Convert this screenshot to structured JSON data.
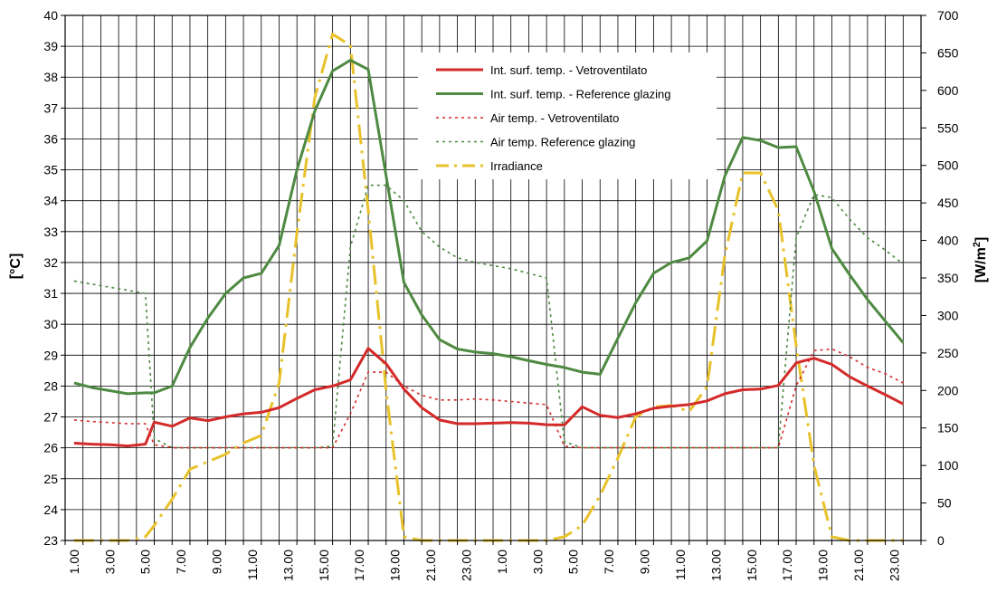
{
  "chart_data": {
    "type": "line",
    "title": "",
    "ylabel_left": "[°C]",
    "ylabel_right_base": "[W/m",
    "ylabel_right_sup": "2",
    "ylabel_right_close": "]",
    "ylim_left": [
      23,
      40
    ],
    "ylim_right": [
      0,
      700
    ],
    "yticks_left": [
      23,
      24,
      25,
      26,
      27,
      28,
      29,
      30,
      31,
      32,
      33,
      34,
      35,
      36,
      37,
      38,
      39,
      40
    ],
    "yticks_right": [
      0,
      50,
      100,
      150,
      200,
      250,
      300,
      350,
      400,
      450,
      500,
      550,
      600,
      650,
      700
    ],
    "x_hours": [
      1,
      2,
      3,
      4,
      5,
      6,
      7,
      8,
      9,
      10,
      11,
      12,
      13,
      14,
      15,
      16,
      17,
      18,
      19,
      20,
      21,
      22,
      23,
      24,
      25,
      26,
      27,
      28,
      29,
      30,
      31,
      32,
      33,
      34,
      35,
      36,
      37,
      38,
      39,
      40,
      41,
      42,
      43,
      44,
      45,
      46,
      47,
      48
    ],
    "xtick_labels": [
      "1.00",
      "3.00",
      "5.00",
      "7.00",
      "9.00",
      "11.00",
      "13.00",
      "15.00",
      "17.00",
      "19.00",
      "21.00",
      "23.00",
      "1.00",
      "3.00",
      "5.00",
      "7.00",
      "9.00",
      "11.00",
      "13.00",
      "15.00",
      "17.00",
      "19.00",
      "21.00",
      "23.00"
    ],
    "grid": true,
    "legend_position": "top-center",
    "series": [
      {
        "name": "Int. surf. temp. - Vetroventilato",
        "axis": "left",
        "color": "#d42a2a",
        "style": "solid",
        "values": [
          [
            1,
            26.15
          ],
          [
            2,
            26.12
          ],
          [
            3,
            26.1
          ],
          [
            4,
            26.06
          ],
          [
            5,
            26.12
          ],
          [
            5.5,
            26.83
          ],
          [
            6.5,
            26.7
          ],
          [
            7.5,
            26.97
          ],
          [
            8.5,
            26.88
          ],
          [
            9.5,
            27.0
          ],
          [
            10.5,
            27.1
          ],
          [
            11.5,
            27.15
          ],
          [
            12.5,
            27.3
          ],
          [
            13.5,
            27.6
          ],
          [
            14.5,
            27.88
          ],
          [
            15.5,
            28.0
          ],
          [
            16.5,
            28.2
          ],
          [
            17.5,
            29.22
          ],
          [
            18.5,
            28.72
          ],
          [
            19.5,
            27.9
          ],
          [
            20.5,
            27.3
          ],
          [
            21.5,
            26.9
          ],
          [
            22.5,
            26.78
          ],
          [
            23.5,
            26.78
          ],
          [
            24.5,
            26.8
          ],
          [
            25.5,
            26.82
          ],
          [
            26.5,
            26.8
          ],
          [
            27.5,
            26.75
          ],
          [
            28.5,
            26.74
          ],
          [
            29.5,
            27.33
          ],
          [
            30.5,
            27.05
          ],
          [
            31.5,
            26.98
          ],
          [
            32.5,
            27.1
          ],
          [
            33.5,
            27.28
          ],
          [
            34.5,
            27.35
          ],
          [
            35.5,
            27.4
          ],
          [
            36.5,
            27.52
          ],
          [
            37.5,
            27.75
          ],
          [
            38.5,
            27.88
          ],
          [
            39.5,
            27.9
          ],
          [
            40.5,
            28.02
          ],
          [
            41.5,
            28.75
          ],
          [
            42.5,
            28.9
          ],
          [
            43.5,
            28.7
          ],
          [
            44.5,
            28.3
          ],
          [
            45.5,
            28.0
          ],
          [
            46.5,
            27.72
          ],
          [
            47.5,
            27.42
          ]
        ]
      },
      {
        "name": "Int. surf. temp. - Reference glazing",
        "axis": "left",
        "color": "#4e8a42",
        "style": "solid",
        "values": [
          [
            1,
            28.1
          ],
          [
            2,
            27.95
          ],
          [
            3,
            27.85
          ],
          [
            4,
            27.75
          ],
          [
            5,
            27.78
          ],
          [
            5.5,
            27.78
          ],
          [
            6.5,
            28.0
          ],
          [
            7.5,
            29.25
          ],
          [
            8.5,
            30.2
          ],
          [
            9.5,
            31.0
          ],
          [
            10.5,
            31.5
          ],
          [
            11.5,
            31.65
          ],
          [
            12.5,
            32.55
          ],
          [
            13.5,
            35.0
          ],
          [
            14.5,
            36.9
          ],
          [
            15.5,
            38.2
          ],
          [
            16.5,
            38.55
          ],
          [
            17.5,
            38.25
          ],
          [
            18.5,
            34.8
          ],
          [
            19.5,
            31.35
          ],
          [
            20.5,
            30.3
          ],
          [
            21.5,
            29.5
          ],
          [
            22.5,
            29.2
          ],
          [
            23.5,
            29.1
          ],
          [
            24.5,
            29.05
          ],
          [
            25.5,
            28.95
          ],
          [
            26.5,
            28.82
          ],
          [
            27.5,
            28.7
          ],
          [
            28.5,
            28.6
          ],
          [
            29.5,
            28.45
          ],
          [
            30.5,
            28.38
          ],
          [
            31.5,
            29.55
          ],
          [
            32.5,
            30.7
          ],
          [
            33.5,
            31.65
          ],
          [
            34.5,
            32.0
          ],
          [
            35.5,
            32.15
          ],
          [
            36.5,
            32.7
          ],
          [
            37.5,
            34.8
          ],
          [
            38.5,
            36.05
          ],
          [
            39.5,
            35.95
          ],
          [
            40.5,
            35.72
          ],
          [
            41.5,
            35.75
          ],
          [
            42.5,
            34.3
          ],
          [
            43.5,
            32.45
          ],
          [
            44.5,
            31.6
          ],
          [
            45.5,
            30.8
          ],
          [
            46.5,
            30.1
          ],
          [
            47.5,
            29.4
          ]
        ]
      },
      {
        "name": "Air temp. - Vetroventilato",
        "axis": "left",
        "color": "#d42a2a",
        "style": "dotted",
        "values": [
          [
            1,
            26.9
          ],
          [
            2,
            26.85
          ],
          [
            3,
            26.82
          ],
          [
            4,
            26.78
          ],
          [
            5,
            26.78
          ],
          [
            5.5,
            26.1
          ],
          [
            6.5,
            26.0
          ],
          [
            7.5,
            26.0
          ],
          [
            8.5,
            26.0
          ],
          [
            9.5,
            26.0
          ],
          [
            10.5,
            26.0
          ],
          [
            11.5,
            26.0
          ],
          [
            12.5,
            26.0
          ],
          [
            13.5,
            26.0
          ],
          [
            14.5,
            26.0
          ],
          [
            15.5,
            26.0
          ],
          [
            16.5,
            27.1
          ],
          [
            17.5,
            28.45
          ],
          [
            18.5,
            28.45
          ],
          [
            19.5,
            28.0
          ],
          [
            20.5,
            27.7
          ],
          [
            21.5,
            27.55
          ],
          [
            22.5,
            27.55
          ],
          [
            23.5,
            27.58
          ],
          [
            24.5,
            27.55
          ],
          [
            25.5,
            27.5
          ],
          [
            26.5,
            27.45
          ],
          [
            27.5,
            27.4
          ],
          [
            28.5,
            26.05
          ],
          [
            29.5,
            26.0
          ],
          [
            30.5,
            26.0
          ],
          [
            31.5,
            26.0
          ],
          [
            32.5,
            26.0
          ],
          [
            33.5,
            26.0
          ],
          [
            34.5,
            26.0
          ],
          [
            35.5,
            26.0
          ],
          [
            36.5,
            26.0
          ],
          [
            37.5,
            26.0
          ],
          [
            38.5,
            26.0
          ],
          [
            39.5,
            26.0
          ],
          [
            40.5,
            26.0
          ],
          [
            41.5,
            28.0
          ],
          [
            42.5,
            29.15
          ],
          [
            43.5,
            29.2
          ],
          [
            44.5,
            28.95
          ],
          [
            45.5,
            28.6
          ],
          [
            46.5,
            28.4
          ],
          [
            47.5,
            28.1
          ]
        ]
      },
      {
        "name": "Air temp. Reference glazing",
        "axis": "left",
        "color": "#4e8a42",
        "style": "dotted",
        "values": [
          [
            1,
            31.4
          ],
          [
            2,
            31.3
          ],
          [
            3,
            31.2
          ],
          [
            4,
            31.1
          ],
          [
            5,
            31.0
          ],
          [
            5.5,
            26.3
          ],
          [
            6.5,
            26.0
          ],
          [
            7.5,
            26.0
          ],
          [
            8.5,
            26.0
          ],
          [
            9.5,
            26.0
          ],
          [
            10.5,
            26.0
          ],
          [
            11.5,
            26.0
          ],
          [
            12.5,
            26.0
          ],
          [
            13.5,
            26.0
          ],
          [
            14.5,
            26.0
          ],
          [
            15.5,
            26.05
          ],
          [
            16.5,
            32.5
          ],
          [
            17.5,
            34.5
          ],
          [
            18.5,
            34.5
          ],
          [
            19.5,
            34.0
          ],
          [
            20.5,
            33.0
          ],
          [
            21.5,
            32.5
          ],
          [
            22.5,
            32.15
          ],
          [
            23.5,
            32.0
          ],
          [
            24.5,
            31.9
          ],
          [
            25.5,
            31.8
          ],
          [
            26.5,
            31.65
          ],
          [
            27.5,
            31.5
          ],
          [
            28.5,
            26.2
          ],
          [
            29.5,
            26.0
          ],
          [
            30.5,
            26.0
          ],
          [
            31.5,
            26.0
          ],
          [
            32.5,
            26.0
          ],
          [
            33.5,
            26.0
          ],
          [
            34.5,
            26.0
          ],
          [
            35.5,
            26.0
          ],
          [
            36.5,
            26.0
          ],
          [
            37.5,
            26.0
          ],
          [
            38.5,
            26.0
          ],
          [
            39.5,
            26.0
          ],
          [
            40.5,
            26.0
          ],
          [
            41.5,
            32.8
          ],
          [
            42.5,
            34.2
          ],
          [
            43.5,
            34.1
          ],
          [
            44.5,
            33.4
          ],
          [
            45.5,
            32.8
          ],
          [
            46.5,
            32.4
          ],
          [
            47.5,
            31.95
          ]
        ]
      },
      {
        "name": "Irradiance",
        "axis": "right",
        "color": "#e8c22a",
        "style": "dashdot",
        "values": [
          [
            1,
            0
          ],
          [
            2,
            0
          ],
          [
            3,
            0
          ],
          [
            4,
            0
          ],
          [
            5,
            5
          ],
          [
            5.5,
            20
          ],
          [
            6.5,
            55
          ],
          [
            7.5,
            95
          ],
          [
            8.5,
            105
          ],
          [
            9.5,
            115
          ],
          [
            10.5,
            130
          ],
          [
            11.5,
            140
          ],
          [
            12.5,
            210
          ],
          [
            13.5,
            410
          ],
          [
            14.5,
            590
          ],
          [
            15.5,
            675
          ],
          [
            16.5,
            660
          ],
          [
            17.5,
            440
          ],
          [
            18.5,
            200
          ],
          [
            19.5,
            5
          ],
          [
            20.5,
            0
          ],
          [
            21.5,
            0
          ],
          [
            22.5,
            0
          ],
          [
            23.5,
            0
          ],
          [
            24.5,
            0
          ],
          [
            25.5,
            0
          ],
          [
            26.5,
            0
          ],
          [
            27.5,
            0
          ],
          [
            28.5,
            5
          ],
          [
            29.5,
            20
          ],
          [
            30.5,
            60
          ],
          [
            31.5,
            110
          ],
          [
            32.5,
            165
          ],
          [
            33.5,
            178
          ],
          [
            34.5,
            180
          ],
          [
            35.5,
            172
          ],
          [
            36.5,
            205
          ],
          [
            37.5,
            380
          ],
          [
            38.5,
            490
          ],
          [
            39.5,
            490
          ],
          [
            40.5,
            440
          ],
          [
            41.5,
            260
          ],
          [
            42.5,
            100
          ],
          [
            43.5,
            5
          ],
          [
            44.5,
            0
          ],
          [
            45.5,
            0
          ],
          [
            46.5,
            0
          ],
          [
            47.5,
            0
          ]
        ]
      }
    ]
  }
}
